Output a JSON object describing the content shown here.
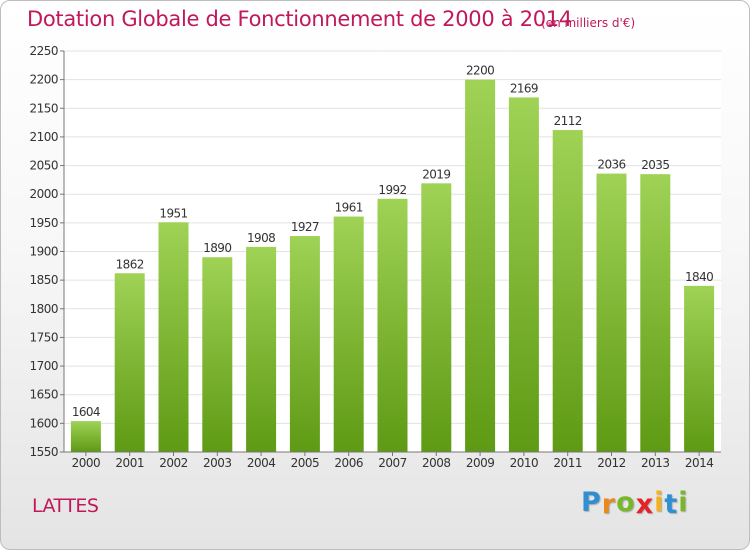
{
  "chart_data": {
    "type": "bar",
    "title": "Dotation Globale de Fonctionnement de 2000 à 2014",
    "subtitle": "(en milliers d'€)",
    "categories": [
      "2000",
      "2001",
      "2002",
      "2003",
      "2004",
      "2005",
      "2006",
      "2007",
      "2008",
      "2009",
      "2010",
      "2011",
      "2012",
      "2013",
      "2014"
    ],
    "values": [
      1604,
      1862,
      1951,
      1890,
      1908,
      1927,
      1961,
      1992,
      2019,
      2200,
      2169,
      2112,
      2036,
      2035,
      1840
    ],
    "ylim": [
      1550,
      2250
    ],
    "yticks": [
      1550,
      1600,
      1650,
      1700,
      1750,
      1800,
      1850,
      1900,
      1950,
      2000,
      2050,
      2100,
      2150,
      2200,
      2250
    ],
    "grid": true,
    "legend": "none",
    "colors": {
      "bar_top": "#9fd255",
      "bar_bottom": "#5e9a14",
      "text_accent": "#c0185a"
    }
  },
  "footer": {
    "place": "LATTES",
    "logo_letters": [
      {
        "char": "P",
        "color": "#2f8fd0"
      },
      {
        "char": "r",
        "color": "#e8891b"
      },
      {
        "char": "o",
        "color": "#78b72a"
      },
      {
        "char": "x",
        "color": "#e2232a"
      },
      {
        "char": "i",
        "color": "#f3b21c"
      },
      {
        "char": "t",
        "color": "#2f8fd0"
      },
      {
        "char": "i",
        "color": "#78b72a"
      }
    ]
  }
}
